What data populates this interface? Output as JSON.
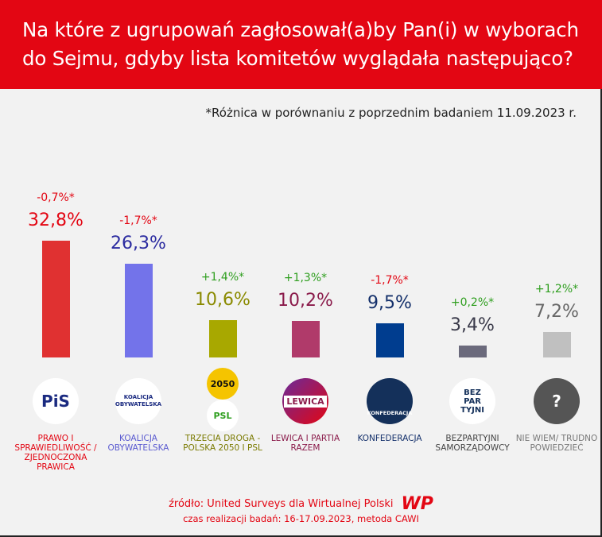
{
  "header": {
    "title": "Na które z ugrupowań zagłosował(a)by Pan(i) w wyborach do Sejmu, gdyby lista komitetów wyglądała następująco?"
  },
  "note": "*Różnica w porównaniu z poprzednim badaniem 11.09.2023 r.",
  "chart_data": {
    "type": "bar",
    "categories": [
      "PRAWO I SPRAWIEDLIWOŚĆ / ZJEDNOCZONA PRAWICA",
      "KOALICJA OBYWATELSKA",
      "TRZECIA DROGA - POLSKA 2050 I PSL",
      "LEWICA I PARTIA RAZEM",
      "KONFEDERACJA",
      "BEZPARTYJNI SAMORZĄDOWCY",
      "NIE WIEM/ TRUDNO POWIEDZIEĆ"
    ],
    "values": [
      32.8,
      26.3,
      10.6,
      10.2,
      9.5,
      3.4,
      7.2
    ],
    "value_labels": [
      "32,8%",
      "26,3%",
      "10,6%",
      "10,2%",
      "9,5%",
      "3,4%",
      "7,2%"
    ],
    "change_labels": [
      "-0,7%*",
      "-1,7%*",
      "+1,4%*",
      "+1,3%*",
      "-1,7%*",
      "+0,2%*",
      "+1,2%*"
    ],
    "bar_colors": [
      "#e03131",
      "#7373ea",
      "#a8a800",
      "#b03a6a",
      "#003d8f",
      "#6b6a7c",
      "#c0c0c0"
    ],
    "label_colors": [
      "#e30613",
      "#2b2ba0",
      "#8a8a00",
      "#8a1a4a",
      "#14306b",
      "#3a3a4a",
      "#666666"
    ],
    "name_colors": [
      "#e30613",
      "#5a5ad0",
      "#7a7a00",
      "#8a1a4a",
      "#14306b",
      "#444444",
      "#777777"
    ],
    "change_colors": {
      "negative": "#e30613",
      "positive": "#2e9e1e"
    },
    "ylim": [
      0,
      34
    ]
  },
  "logos": [
    "PiS",
    "KOALICJA OBYWATELSKA",
    "2050",
    "PSL",
    "LEWICA",
    "KONFEDERACJA",
    "BEZ PAR TYJNI",
    "?"
  ],
  "footer": {
    "source": "źródło: United Surveys dla Wirtualnej Polski",
    "brand": "WP",
    "method": "czas realizacji badań: 16-17.09.2023, metoda CAWI"
  }
}
